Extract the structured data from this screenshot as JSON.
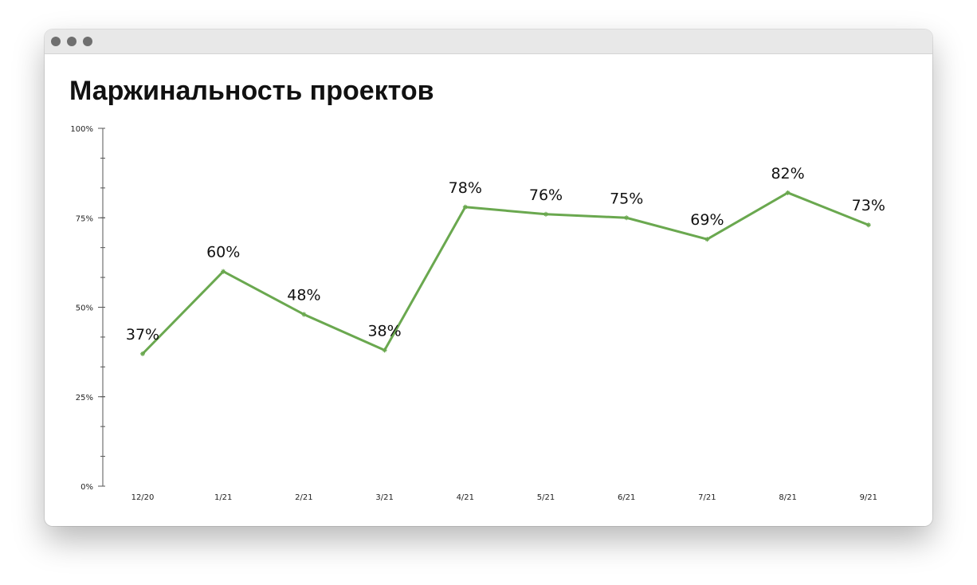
{
  "window": {
    "title": ""
  },
  "chart_data": {
    "type": "line",
    "title": "Маржинальность проектов",
    "xlabel": "",
    "ylabel": "",
    "categories": [
      "12/20",
      "1/21",
      "2/21",
      "3/21",
      "4/21",
      "5/21",
      "6/21",
      "7/21",
      "8/21",
      "9/21"
    ],
    "series": [
      {
        "values": [
          37,
          60,
          48,
          38,
          78,
          76,
          75,
          69,
          82,
          73
        ],
        "data_labels": [
          "37%",
          "60%",
          "48%",
          "38%",
          "78%",
          "76%",
          "75%",
          "69%",
          "82%",
          "73%"
        ],
        "color": "#6aa84f"
      }
    ],
    "ylim": [
      0,
      100
    ],
    "yticks": [
      0,
      25,
      50,
      75,
      100
    ],
    "ytick_labels": [
      "0%",
      "25%",
      "50%",
      "75%",
      "100%"
    ],
    "grid": false,
    "legend": "none"
  }
}
